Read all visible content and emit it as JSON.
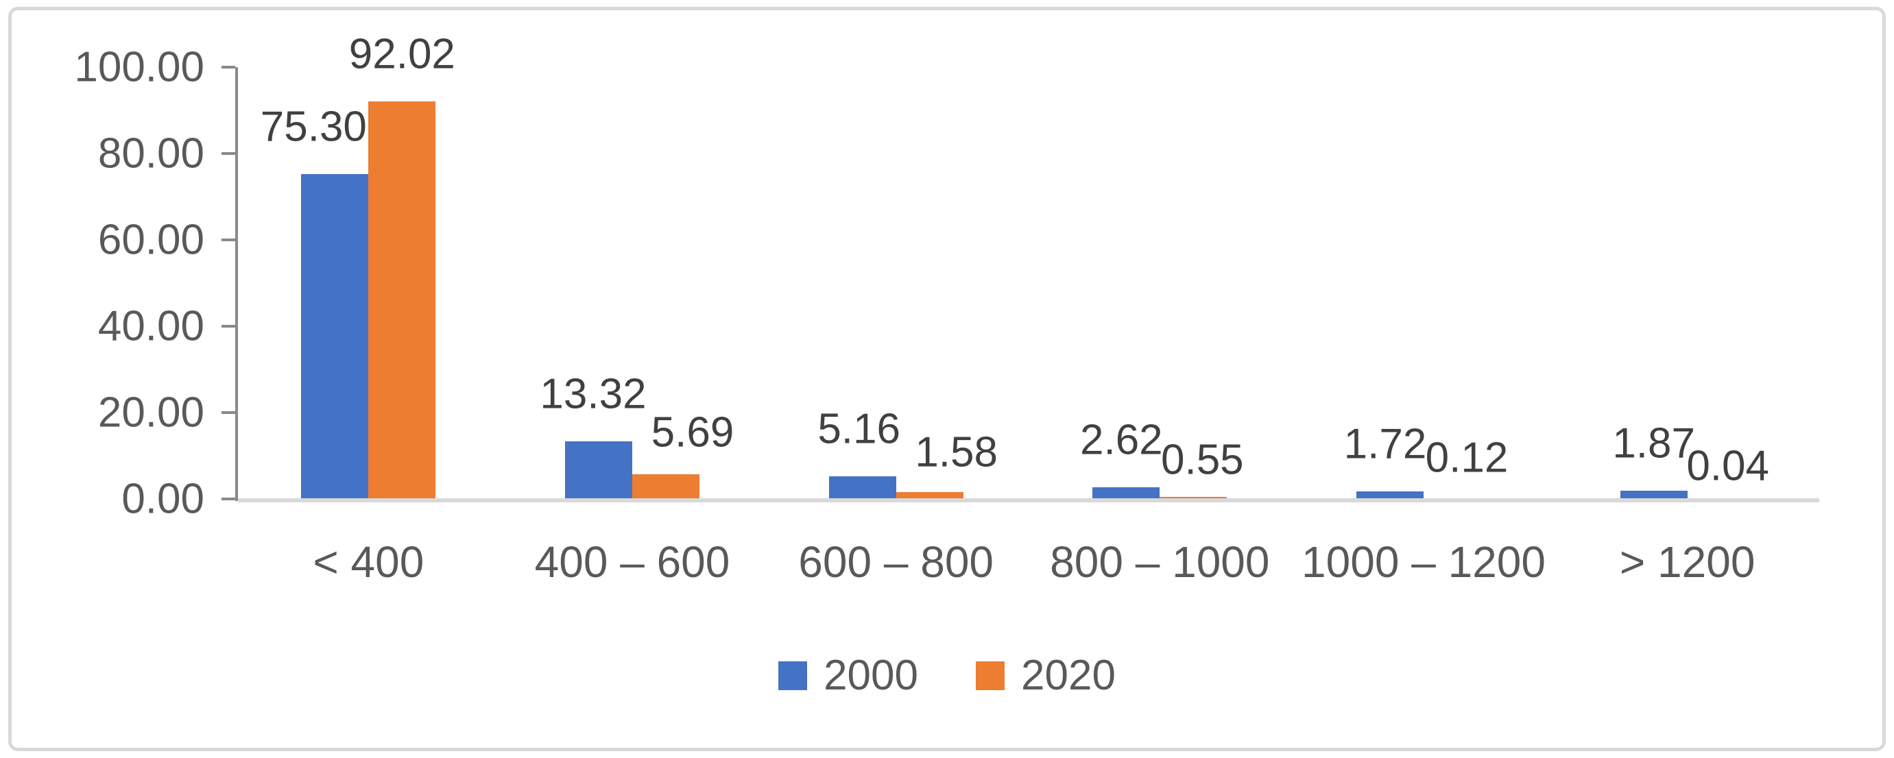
{
  "chart_data": {
    "type": "bar",
    "bar_type": "clustered",
    "title": "",
    "xlabel": "",
    "ylabel": "",
    "categories": [
      "< 400",
      "400 – 600",
      "600 – 800",
      "800 – 1000",
      "1000 – 1200",
      "> 1200"
    ],
    "series": [
      {
        "name": "2000",
        "color": "#4472C4",
        "values": [
          75.3,
          13.32,
          5.16,
          2.62,
          1.72,
          1.87
        ],
        "labels": [
          "75.30",
          "13.32",
          "5.16",
          "2.62",
          "1.72",
          "1.87"
        ]
      },
      {
        "name": "2020",
        "color": "#ED7D31",
        "values": [
          92.02,
          5.69,
          1.58,
          0.55,
          0.12,
          0.04
        ],
        "labels": [
          "92.02",
          "5.69",
          "1.58",
          "0.55",
          "0.12",
          "0.04"
        ]
      }
    ],
    "ylim": [
      0,
      100
    ],
    "yticks": {
      "values": [
        0,
        20,
        40,
        60,
        80,
        100
      ],
      "labels": [
        "0.00",
        "20.00",
        "40.00",
        "60.00",
        "80.00",
        "100.00"
      ]
    },
    "grid": false,
    "data_labels_visible": true,
    "number_format": "0.00",
    "legend": {
      "position": "bottom",
      "entries": [
        "2000",
        "2020"
      ]
    }
  },
  "colors": {
    "series_2000": "#4472C4",
    "series_2020": "#ED7D31",
    "axis_text": "#595959",
    "data_label_text": "#404040",
    "axis_line": "#898989",
    "baseline": "#D9D9D9",
    "frame_border": "#D9D9D9",
    "background": "#FFFFFF"
  }
}
